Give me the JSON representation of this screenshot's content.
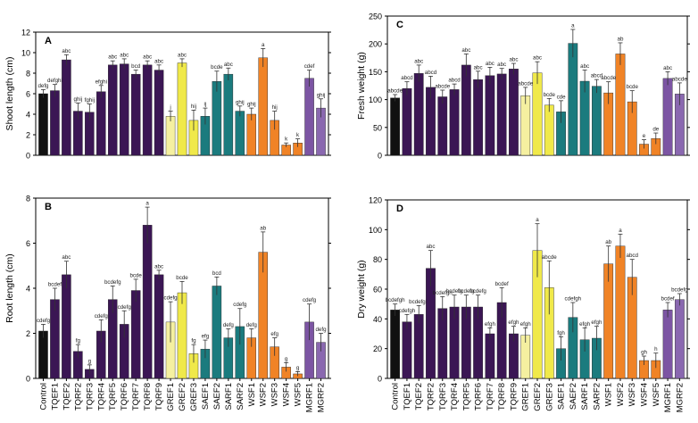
{
  "colors": {
    "control": "#111111",
    "tqef": "#3b1654",
    "tqrf": "#3b1654",
    "gref": "#f0e94a",
    "gref1_light": "#f5f0a0",
    "saef": "#1b7b7e",
    "sarf": "#1b7b7e",
    "wsf": "#f08326",
    "mgrf": "#7c55a3",
    "mgrf2": "#8a68b0"
  },
  "chart_data": [
    {
      "panel": "A",
      "type": "bar",
      "title": "",
      "xlabel": "",
      "ylabel": "Shoot length (cm)",
      "ylim": [
        0,
        12
      ],
      "yticks": [
        0,
        2,
        4,
        6,
        8,
        10,
        12
      ],
      "categories": [
        "Control",
        "TQEF1",
        "TQEF2",
        "TQRF2",
        "TQRF3",
        "TQRF4",
        "TQRF5",
        "TQRF6",
        "TQRF7",
        "TQRF8",
        "TQRF9",
        "GREF1",
        "GREF2",
        "GREF3",
        "SAEF1",
        "SAEF2",
        "SARF1",
        "SARF2",
        "WSF1",
        "WSF2",
        "WSF3",
        "WSF4",
        "WSF5",
        "MGRF1",
        "MGRF2"
      ],
      "values": [
        6.0,
        6.3,
        9.3,
        4.3,
        4.2,
        6.2,
        8.8,
        8.9,
        7.9,
        8.8,
        8.3,
        3.8,
        9.0,
        3.4,
        3.8,
        7.2,
        7.9,
        4.3,
        4.0,
        9.5,
        3.4,
        1.0,
        1.2,
        7.5,
        4.6
      ],
      "errors": [
        0.4,
        0.6,
        0.5,
        0.8,
        0.8,
        0.6,
        0.4,
        0.5,
        0.4,
        0.4,
        0.5,
        0.5,
        0.4,
        1.0,
        0.8,
        1.0,
        0.6,
        0.5,
        0.6,
        0.9,
        0.9,
        0.2,
        0.4,
        0.8,
        0.9
      ],
      "letters": [
        "defg",
        "defghi",
        "abc",
        "ghij",
        "fghij",
        "efghi",
        "abc",
        "abc",
        "bcd",
        "abc",
        "abc",
        "j",
        "abc",
        "hij",
        "ij",
        "bcde",
        "abc",
        "ghij",
        "ghij",
        "a",
        "hij",
        "k",
        "k",
        "cdef",
        "ghij"
      ]
    },
    {
      "panel": "B",
      "type": "bar",
      "title": "",
      "xlabel": "",
      "ylabel": "Root length (cm)",
      "ylim": [
        0,
        8
      ],
      "yticks": [
        0,
        2,
        4,
        6,
        8
      ],
      "categories": [
        "Control",
        "TQEF1",
        "TQEF2",
        "TQRF2",
        "TQRF3",
        "TQRF4",
        "TQRF5",
        "TQRF6",
        "TQRF7",
        "TQRF8",
        "TQRF9",
        "GREF1",
        "GREF2",
        "GREF3",
        "SAEF1",
        "SAEF2",
        "SARF1",
        "SARF2",
        "WSF1",
        "WSF2",
        "WSF3",
        "WSF4",
        "WSF5",
        "MGRF1",
        "MGRF2"
      ],
      "values": [
        2.1,
        3.5,
        4.6,
        1.2,
        0.4,
        2.1,
        3.5,
        2.4,
        3.9,
        6.8,
        4.6,
        2.5,
        3.8,
        1.1,
        1.3,
        4.1,
        1.8,
        2.3,
        1.8,
        5.6,
        1.4,
        0.5,
        0.2,
        2.5,
        1.6
      ],
      "errors": [
        0.3,
        0.5,
        0.6,
        0.3,
        0.2,
        0.5,
        0.6,
        0.6,
        0.5,
        0.8,
        0.2,
        0.9,
        0.5,
        0.4,
        0.4,
        0.4,
        0.4,
        0.8,
        0.4,
        0.9,
        0.4,
        0.2,
        0.1,
        0.8,
        0.4
      ],
      "letters": [
        "cdefg",
        "bcdef",
        "abc",
        "fg",
        "g",
        "cdefg",
        "bcdefg",
        "cdefg",
        "bcde",
        "a",
        "abc",
        "cdefg",
        "bcde",
        "fg",
        "efg",
        "bcd",
        "defg",
        "cdefg",
        "defg",
        "ab",
        "efg",
        "g",
        "g",
        "cdefg",
        "defg"
      ]
    },
    {
      "panel": "C",
      "type": "bar",
      "title": "",
      "xlabel": "",
      "ylabel": "Fresh weight (g)",
      "ylim": [
        0,
        250
      ],
      "yticks": [
        0,
        50,
        100,
        150,
        200,
        250
      ],
      "categories": [
        "Control",
        "TQEF1",
        "TQEF2",
        "TQRF2",
        "TQRF3",
        "TQRF4",
        "TQRF5",
        "TQRF6",
        "TQRF7",
        "TQRF8",
        "TQRF9",
        "GREF1",
        "GREF2",
        "GREF3",
        "SAEF1",
        "SAEF2",
        "SARF1",
        "SARF2",
        "WSF1",
        "WSF2",
        "WSF3",
        "WSF4",
        "WSF5",
        "MGRF1",
        "MGRF2"
      ],
      "values": [
        103,
        120,
        147,
        122,
        105,
        118,
        162,
        136,
        143,
        146,
        155,
        107,
        148,
        90,
        78,
        201,
        133,
        124,
        112,
        182,
        96,
        20,
        30,
        138,
        110
      ],
      "errors": [
        6,
        12,
        15,
        20,
        12,
        10,
        20,
        15,
        15,
        10,
        10,
        15,
        20,
        12,
        20,
        25,
        20,
        12,
        20,
        20,
        20,
        8,
        10,
        12,
        20
      ],
      "letters": [
        "abcde",
        "abcd",
        "abc",
        "abcd",
        "abcde",
        "abcd",
        "abc",
        "abc",
        "abc",
        "abc",
        "abc",
        "abcde",
        "abc",
        "bcde",
        "cde",
        "a",
        "abc",
        "abcd",
        "abcde",
        "ab",
        "bcde",
        "e",
        "de",
        "abc",
        "abcde"
      ]
    },
    {
      "panel": "D",
      "type": "bar",
      "title": "",
      "xlabel": "",
      "ylabel": "Dry weight (g)",
      "ylim": [
        0,
        120
      ],
      "yticks": [
        0,
        20,
        40,
        60,
        80,
        100,
        120
      ],
      "categories": [
        "Control",
        "TQEF1",
        "TQEF2",
        "TQRF2",
        "TQRF3",
        "TQRF4",
        "TQRF5",
        "TQRF6",
        "TQRF7",
        "TQRF8",
        "TQRF9",
        "GREF1",
        "GREF2",
        "GREF3",
        "SAEF1",
        "SAEF2",
        "SARF1",
        "SARF2",
        "WSF1",
        "WSF2",
        "WSF3",
        "WSF4",
        "WSF5",
        "MGRF1",
        "MGRF2"
      ],
      "values": [
        46,
        38,
        43,
        74,
        47,
        48,
        48,
        48,
        30,
        51,
        30,
        29,
        86,
        61,
        20,
        41,
        26,
        27,
        77,
        89,
        68,
        12,
        12,
        46,
        53
      ],
      "errors": [
        4,
        5,
        6,
        12,
        8,
        8,
        8,
        8,
        4,
        10,
        5,
        5,
        18,
        18,
        8,
        10,
        8,
        8,
        12,
        8,
        12,
        3,
        5,
        5,
        4
      ],
      "letters": [
        "bcdefgh",
        "cdefgh",
        "bcdefgh",
        "abc",
        "bcdefgh",
        "bcdefg",
        "bcdefg",
        "bcdefg",
        "efgh",
        "bcdef",
        "efgh",
        "efgh",
        "a",
        "abcde",
        "fgh",
        "cdefgh",
        "efgh",
        "efgh",
        "ab",
        "a",
        "abcd",
        "gh",
        "h",
        "bcdef",
        "bcdefg"
      ]
    }
  ]
}
